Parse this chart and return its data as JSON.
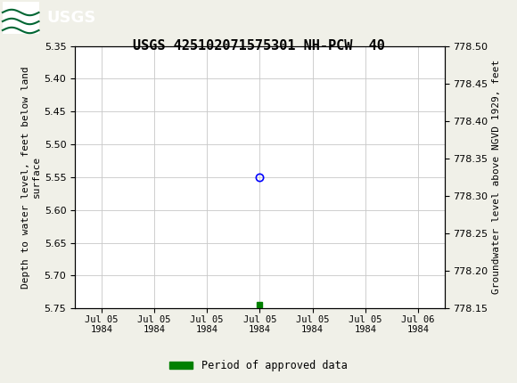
{
  "title": "USGS 425102071575301 NH-PCW  40",
  "ylabel_left": "Depth to water level, feet below land\nsurface",
  "ylabel_right": "Groundwater level above NGVD 1929, feet",
  "ylim_left": [
    5.75,
    5.35
  ],
  "ylim_right": [
    778.15,
    778.5
  ],
  "yticks_left": [
    5.35,
    5.4,
    5.45,
    5.5,
    5.55,
    5.6,
    5.65,
    5.7,
    5.75
  ],
  "yticks_right": [
    778.5,
    778.45,
    778.4,
    778.35,
    778.3,
    778.25,
    778.2,
    778.15
  ],
  "data_point_x": 3.5,
  "data_point_y": 5.55,
  "data_point_color": "blue",
  "data_point_marker": "o",
  "approval_point_x": 3.5,
  "approval_point_y": 5.745,
  "approval_color": "#008000",
  "approval_marker": "s",
  "approval_size": 4,
  "background_color": "#f0f0e8",
  "plot_bg_color": "#ffffff",
  "header_color": "#006633",
  "grid_color": "#c8c8c8",
  "legend_label": "Period of approved data",
  "xlim": [
    0,
    7
  ],
  "xtick_positions": [
    0.5,
    1.5,
    2.5,
    3.5,
    4.5,
    5.5,
    6.5
  ],
  "xtick_labels": [
    "Jul 05\n1984",
    "Jul 05\n1984",
    "Jul 05\n1984",
    "Jul 05\n1984",
    "Jul 05\n1984",
    "Jul 05\n1984",
    "Jul 06\n1984"
  ]
}
